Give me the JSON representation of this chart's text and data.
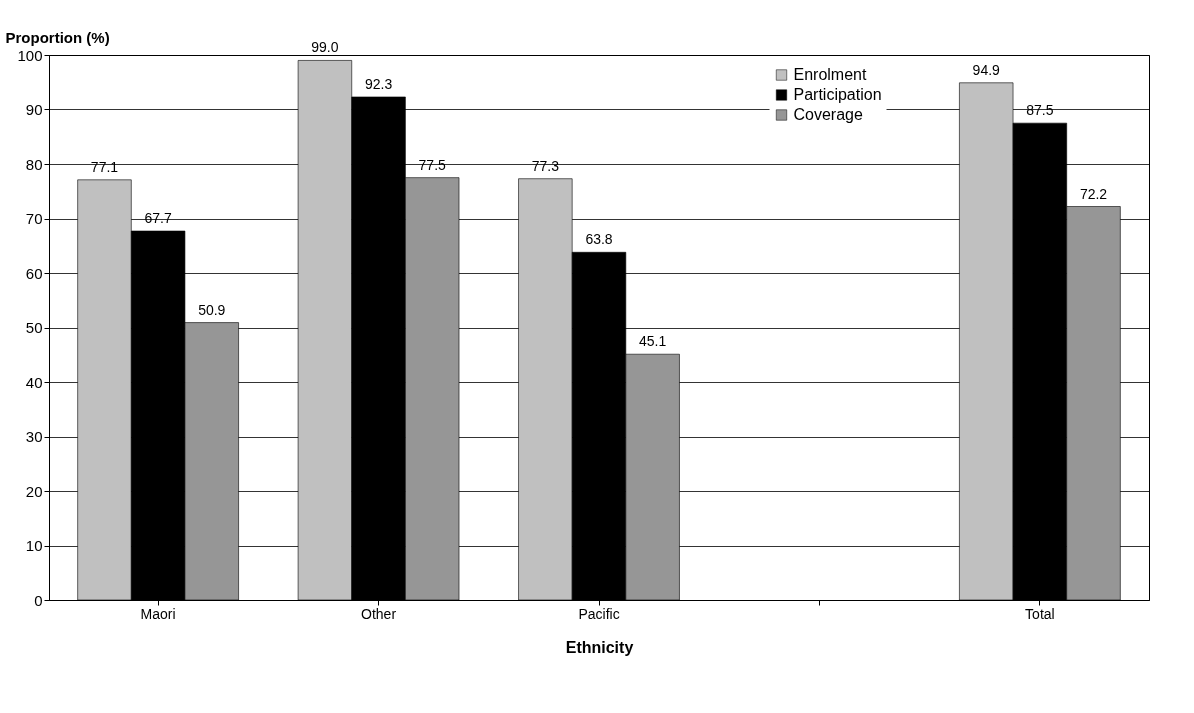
{
  "chart_data": {
    "type": "bar",
    "xlabel": "Ethnicity",
    "ylabel": "Proportion (%)",
    "categories": [
      "Maori",
      "Other",
      "Pacific",
      null,
      "Total"
    ],
    "series": [
      {
        "name": "Enrolment",
        "color": "#c0c0c0",
        "values": [
          77.1,
          99.0,
          77.3,
          null,
          94.9
        ],
        "value_labels": [
          "77.1",
          "99.0",
          "77.3",
          null,
          "94.9"
        ]
      },
      {
        "name": "Participation",
        "color": "#000000",
        "values": [
          67.7,
          92.3,
          63.8,
          null,
          87.5
        ],
        "value_labels": [
          "67.7",
          "92.3",
          "63.8",
          null,
          "87.5"
        ]
      },
      {
        "name": "Coverage",
        "color": "#969696",
        "values": [
          50.9,
          77.5,
          45.1,
          null,
          72.2
        ],
        "value_labels": [
          "50.9",
          "77.5",
          "45.1",
          null,
          "72.2"
        ]
      }
    ],
    "ylim": [
      0,
      100
    ],
    "yticks": [
      0,
      10,
      20,
      30,
      40,
      50,
      60,
      70,
      80,
      90,
      100
    ],
    "grid": "y",
    "legend": "top right"
  }
}
